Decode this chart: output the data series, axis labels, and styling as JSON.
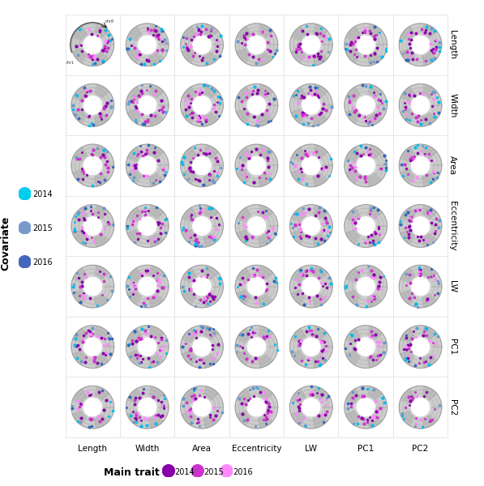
{
  "row_labels": [
    "Length",
    "Width",
    "Area",
    "Eccentricity",
    "LW",
    "PC1",
    "PC2"
  ],
  "col_labels": [
    "Length",
    "Width",
    "Area",
    "Eccentricity",
    "LW",
    "PC1",
    "PC2"
  ],
  "n_chromosomes": 9,
  "n_rings": 3,
  "dot_colors_main": [
    "#8800AA",
    "#CC33CC",
    "#FF88FF"
  ],
  "dot_colors_cov": [
    "#00BBEE",
    "#6699CC",
    "#3366BB"
  ],
  "cov_legend_colors": [
    "#00CCEE",
    "#7799CC",
    "#4466BB"
  ],
  "gray_ring_color": "#CCCCCC",
  "gray_ring_alt": "#BBBBBB",
  "white_color": "#FFFFFF",
  "ring_edge_color": "#AAAAAA",
  "sep_line_color": "#DDDDDD",
  "bg_color": "#FFFFFF",
  "label_fs": 7.5,
  "legend_fs": 7.0,
  "axis_label_fs": 9.0,
  "figsize": [
    5.97,
    6.0
  ],
  "dpi": 100
}
